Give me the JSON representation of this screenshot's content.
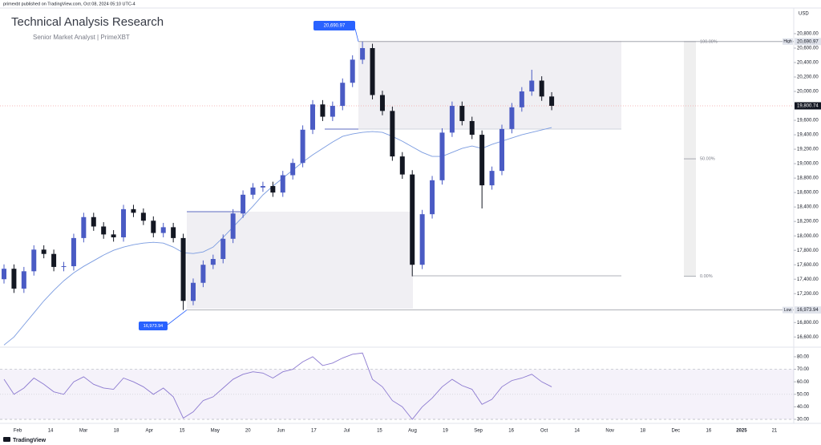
{
  "header": {
    "published": "primexbt published on TradingView.com, Oct 08, 2024 05:10 UTC-4",
    "title": "Technical Analysis Research",
    "subtitle": "Senior Market Analyst | PrimeXBT",
    "brand": "TradingView"
  },
  "chart_data": [
    {
      "type": "candlestick",
      "currency": "USD",
      "up_color": "#4a5bc4",
      "down_color": "#131722",
      "open": [
        17400,
        17545,
        17270,
        17510,
        17810,
        17750,
        17570,
        17580,
        17970,
        18260,
        18130,
        18020,
        17980,
        18370,
        18320,
        18210,
        18040,
        18120,
        17970,
        17100,
        17350,
        17600,
        17680,
        17960,
        18310,
        18570,
        18670,
        18690,
        18600,
        18840,
        19010,
        19470,
        19820,
        19650,
        19800,
        20120,
        20440,
        20600,
        19950,
        19730,
        19100,
        18850,
        17600,
        18300,
        18770,
        19430,
        19800,
        19590,
        19400,
        18700,
        18900,
        19480,
        19780,
        20000,
        20150,
        19930
      ],
      "high": [
        17605,
        17605,
        17570,
        17870,
        17870,
        17810,
        17640,
        18030,
        18320,
        18320,
        18190,
        18080,
        18430,
        18430,
        18380,
        18270,
        18180,
        18180,
        18030,
        17410,
        17660,
        17740,
        18020,
        18370,
        18630,
        18730,
        18750,
        18750,
        18900,
        19070,
        19530,
        19880,
        19880,
        19860,
        20180,
        20500,
        20690.97,
        20660,
        20010,
        19790,
        19160,
        18910,
        18360,
        18830,
        19490,
        19860,
        19860,
        19650,
        19460,
        18960,
        19540,
        19840,
        20060,
        20300,
        20210,
        19990
      ],
      "low": [
        17340,
        17210,
        17210,
        17450,
        17690,
        17510,
        17510,
        17520,
        17910,
        18070,
        17960,
        17920,
        17920,
        18260,
        18150,
        17980,
        17980,
        17910,
        16973.94,
        17040,
        17290,
        17540,
        17620,
        17900,
        18250,
        18510,
        18610,
        18540,
        18540,
        18780,
        18950,
        19410,
        19590,
        19590,
        19740,
        20060,
        20380,
        19890,
        19670,
        19040,
        18790,
        17440,
        17540,
        18240,
        18710,
        19370,
        19530,
        19340,
        18380,
        18640,
        18840,
        19420,
        19720,
        19940,
        19870,
        19740
      ],
      "close": [
        17545,
        17270,
        17510,
        17810,
        17750,
        17570,
        17580,
        17970,
        18260,
        18130,
        18020,
        17980,
        18370,
        18320,
        18210,
        18040,
        18120,
        17970,
        17100,
        17350,
        17600,
        17680,
        17960,
        18310,
        18570,
        18670,
        18690,
        18600,
        18840,
        19010,
        19470,
        19820,
        19650,
        19800,
        20120,
        20440,
        20600,
        19950,
        19730,
        19100,
        18850,
        17600,
        18300,
        18770,
        19430,
        19800,
        19590,
        19400,
        18700,
        18900,
        19480,
        19780,
        20000,
        20150,
        19930,
        19800.74
      ],
      "ma": {
        "color": "#7a9be0",
        "values": [
          16489,
          16600,
          16767,
          16933,
          17100,
          17245,
          17378,
          17489,
          17578,
          17656,
          17734,
          17800,
          17845,
          17878,
          17900,
          17911,
          17900,
          17845,
          17767,
          17756,
          17778,
          17845,
          17978,
          18122,
          18267,
          18411,
          18567,
          18689,
          18800,
          18911,
          19022,
          19122,
          19211,
          19300,
          19378,
          19411,
          19433,
          19445,
          19433,
          19378,
          19311,
          19233,
          19156,
          19100,
          19100,
          19156,
          19211,
          19245,
          19211,
          19267,
          19311,
          19356,
          19400,
          19433,
          19467,
          19500
        ]
      },
      "ylim": [
        16470,
        21155
      ],
      "yticks": [
        {
          "value": 16600,
          "label": "16,600.00"
        },
        {
          "value": 16800,
          "label": "16,800.00"
        },
        {
          "value": 17200,
          "label": "17,200.00"
        },
        {
          "value": 17400,
          "label": "17,400.00"
        },
        {
          "value": 17600,
          "label": "17,600.00"
        },
        {
          "value": 17800,
          "label": "17,800.00"
        },
        {
          "value": 18000,
          "label": "18,000.00"
        },
        {
          "value": 18200,
          "label": "18,200.00"
        },
        {
          "value": 18400,
          "label": "18,400.00"
        },
        {
          "value": 18600,
          "label": "18,600.00"
        },
        {
          "value": 18800,
          "label": "18,800.00"
        },
        {
          "value": 19000,
          "label": "19,000.00"
        },
        {
          "value": 19200,
          "label": "19,200.00"
        },
        {
          "value": 19400,
          "label": "19,400.00"
        },
        {
          "value": 19600,
          "label": "19,600.00"
        },
        {
          "value": 20000,
          "label": "20,000.00"
        },
        {
          "value": 20200,
          "label": "20,200.00"
        },
        {
          "value": 20400,
          "label": "20,400.00"
        },
        {
          "value": 20600,
          "label": "20,600.00"
        },
        {
          "value": 20800,
          "label": "20,800.00"
        }
      ],
      "high_mark": {
        "value": 20690.97,
        "label": "20,690.97",
        "tag": "High"
      },
      "low_mark": {
        "value": 16973.94,
        "label": "16,973.94",
        "tag": "Low"
      },
      "last_price": {
        "value": 19800.74,
        "label": "19,800.74"
      },
      "fib_levels": [
        {
          "value": 20690.97,
          "label": "100.00%"
        },
        {
          "value": 19067,
          "label": "50.00%"
        },
        {
          "value": 17443,
          "label": "0.00%"
        }
      ],
      "x_labels": [
        "Feb",
        "14",
        "Mar",
        "18",
        "Apr",
        "15",
        "May",
        "20",
        "Jun",
        "17",
        "Jul",
        "15",
        "Aug",
        "19",
        "Sep",
        "16",
        "Oct",
        "14",
        "Nov",
        "18",
        "Dec",
        "16",
        "2025",
        "21"
      ]
    },
    {
      "type": "line",
      "color": "#8c7ad0",
      "values": [
        62,
        50,
        55,
        63,
        58,
        52,
        50,
        60,
        64,
        58,
        55,
        54,
        63,
        60,
        56,
        50,
        55,
        48,
        31,
        36,
        45,
        48,
        55,
        62,
        66,
        68,
        67,
        63,
        68,
        70,
        76,
        80,
        73,
        75,
        79,
        82,
        83,
        62,
        56,
        45,
        40,
        30,
        40,
        47,
        56,
        62,
        57,
        54,
        42,
        46,
        56,
        61,
        63,
        66,
        60,
        56
      ],
      "band": [
        30,
        70
      ],
      "midline": 50,
      "ylim": [
        26.8,
        85.1
      ],
      "yticks": [
        {
          "value": 30,
          "label": "30.00"
        },
        {
          "value": 40,
          "label": "40.00"
        },
        {
          "value": 50,
          "label": "50.00"
        },
        {
          "value": 60,
          "label": "60.00"
        },
        {
          "value": 70,
          "label": "70.00"
        },
        {
          "value": 80,
          "label": "80.00"
        }
      ]
    }
  ]
}
